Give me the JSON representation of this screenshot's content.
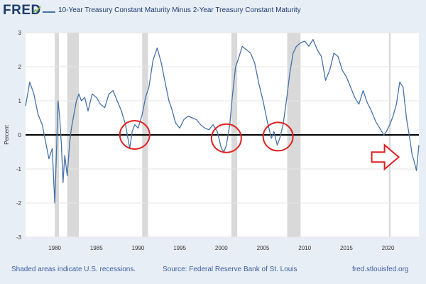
{
  "header": {
    "logo": "FRED",
    "legend_label": "10-Year Treasury Constant Maturity Minus 2-Year Treasury Constant Maturity"
  },
  "footer": {
    "recession_note": "Shaded areas indicate U.S. recessions.",
    "source": "Source: Federal Reserve Bank of St. Louis",
    "site": "fred.stlouisfed.org"
  },
  "colors": {
    "series": "#4572a7",
    "recession": "#d9d9d9",
    "zero_line": "#000000",
    "annotation": "#e02020",
    "frame": "#e8eef6"
  },
  "chart_data": {
    "type": "line",
    "ylabel": "Percent",
    "xlim": [
      1976.5,
      2023.7
    ],
    "ylim": [
      -3,
      3
    ],
    "yticks": [
      "3",
      "2",
      "1",
      "0",
      "-1",
      "-2",
      "-3"
    ],
    "xticks": [
      "1980",
      "1985",
      "1990",
      "1995",
      "2000",
      "2005",
      "2010",
      "2015",
      "2020"
    ],
    "grid": "horizontal",
    "recessions": [
      [
        1980.0,
        1980.5
      ],
      [
        1981.5,
        1982.9
      ],
      [
        1990.5,
        1991.2
      ],
      [
        2001.2,
        2001.9
      ],
      [
        2007.9,
        2009.5
      ],
      [
        2020.1,
        2020.3
      ]
    ],
    "series": [
      {
        "x": [
          1976.5,
          1977.0,
          1977.5,
          1978.0,
          1978.5,
          1978.9,
          1979.3,
          1979.7,
          1980.0,
          1980.2,
          1980.4,
          1980.6,
          1980.8,
          1981.0,
          1981.2,
          1981.5,
          1981.8,
          1982.0,
          1982.3,
          1982.6,
          1982.9,
          1983.2,
          1983.6,
          1984.0,
          1984.5,
          1985.0,
          1985.5,
          1986.0,
          1986.5,
          1987.0,
          1987.5,
          1988.0,
          1988.5,
          1989.0,
          1989.3,
          1989.6,
          1990.0,
          1990.5,
          1990.9,
          1991.3,
          1991.8,
          1992.3,
          1992.8,
          1993.2,
          1993.7,
          1994.0,
          1994.5,
          1995.0,
          1995.5,
          1996.0,
          1996.5,
          1997.0,
          1997.5,
          1998.0,
          1998.5,
          1999.0,
          1999.5,
          2000.0,
          2000.3,
          2000.6,
          2001.0,
          2001.3,
          2001.7,
          2002.0,
          2002.5,
          2003.0,
          2003.5,
          2004.0,
          2004.5,
          2005.0,
          2005.5,
          2006.0,
          2006.3,
          2006.7,
          2007.0,
          2007.4,
          2007.8,
          2008.2,
          2008.6,
          2009.0,
          2009.5,
          2010.0,
          2010.5,
          2011.0,
          2011.5,
          2012.0,
          2012.5,
          2013.0,
          2013.5,
          2014.0,
          2014.5,
          2015.0,
          2015.5,
          2016.0,
          2016.5,
          2017.0,
          2017.5,
          2018.0,
          2018.5,
          2019.0,
          2019.5,
          2019.8,
          2020.2,
          2020.6,
          2021.0,
          2021.4,
          2021.8,
          2022.2,
          2022.6,
          2022.9,
          2023.1,
          2023.4,
          2023.7
        ],
        "values": [
          0.85,
          1.55,
          1.2,
          0.6,
          0.3,
          -0.2,
          -0.7,
          -0.4,
          -2.0,
          -0.6,
          1.0,
          0.5,
          -0.3,
          -1.4,
          -0.6,
          -1.2,
          -0.2,
          0.2,
          0.6,
          1.0,
          1.2,
          1.0,
          1.1,
          0.7,
          1.2,
          1.1,
          0.9,
          0.8,
          1.2,
          1.3,
          1.0,
          0.7,
          0.3,
          -0.4,
          0.1,
          0.3,
          0.2,
          0.6,
          1.1,
          1.4,
          2.2,
          2.55,
          2.1,
          1.6,
          1.0,
          0.8,
          0.35,
          0.2,
          0.45,
          0.55,
          0.5,
          0.45,
          0.3,
          0.2,
          0.15,
          0.3,
          0.1,
          -0.4,
          -0.5,
          -0.3,
          0.3,
          1.1,
          2.0,
          2.2,
          2.6,
          2.5,
          2.4,
          2.1,
          1.5,
          1.0,
          0.4,
          -0.1,
          0.1,
          -0.3,
          -0.1,
          0.3,
          1.0,
          1.8,
          2.4,
          2.6,
          2.7,
          2.75,
          2.6,
          2.8,
          2.5,
          2.3,
          1.6,
          1.9,
          2.4,
          2.3,
          1.9,
          1.7,
          1.4,
          1.1,
          0.9,
          1.3,
          0.95,
          0.7,
          0.4,
          0.2,
          0.0,
          0.1,
          0.3,
          0.55,
          0.9,
          1.55,
          1.4,
          0.5,
          -0.1,
          -0.6,
          -0.75,
          -1.05,
          -0.3
        ]
      }
    ],
    "annotations": [
      {
        "type": "circle",
        "x": 1989.6,
        "y": 0.0
      },
      {
        "type": "circle",
        "x": 2000.6,
        "y": -0.1
      },
      {
        "type": "circle",
        "x": 2006.8,
        "y": -0.05
      },
      {
        "type": "arrow",
        "x": 2020.0,
        "y": -0.65
      }
    ]
  }
}
